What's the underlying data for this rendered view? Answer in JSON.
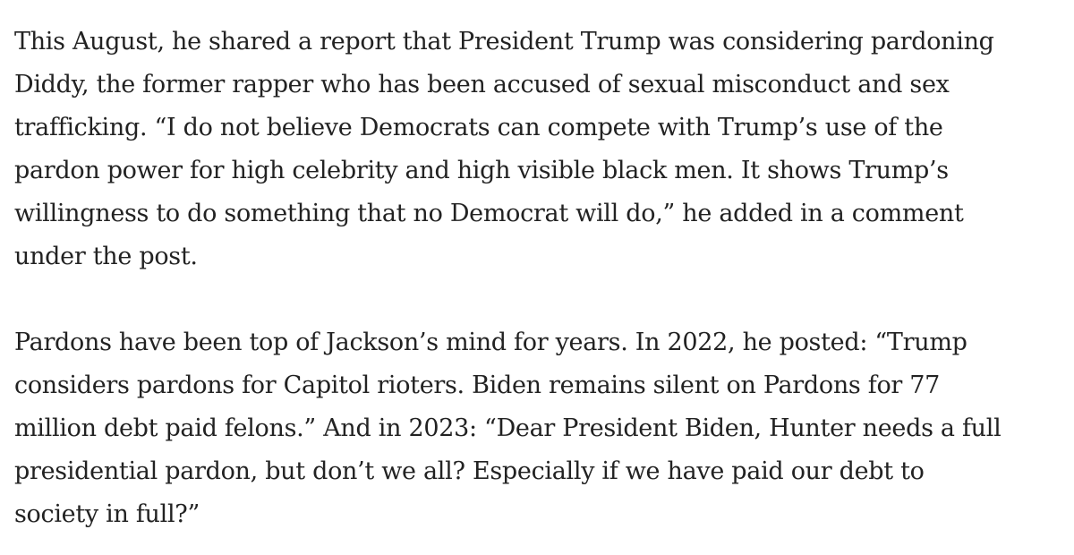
{
  "article": {
    "paragraphs": [
      {
        "lines": [
          "This August, he shared a report that President Trump was considering pardoning",
          "Diddy, the former rapper who has been accused of sexual misconduct and sex",
          "trafficking. “I do not believe Democrats can compete with Trump’s use of the",
          "pardon power for high celebrity and high visible black men. It shows Trump’s",
          "willingness to do something that no Democrat will do,” he added in a comment",
          "under the post."
        ]
      },
      {
        "lines": [
          "Pardons have been top of Jackson’s mind for years. In 2022, he posted: “Trump",
          "considers pardons for Capitol rioters. Biden remains silent on Pardons for 77",
          "million debt paid felons.” And in 2023: “Dear President Biden, Hunter needs a full",
          "presidential pardon, but don’t we all? Especially if we have paid our debt to",
          "society in full?”"
        ]
      }
    ]
  }
}
